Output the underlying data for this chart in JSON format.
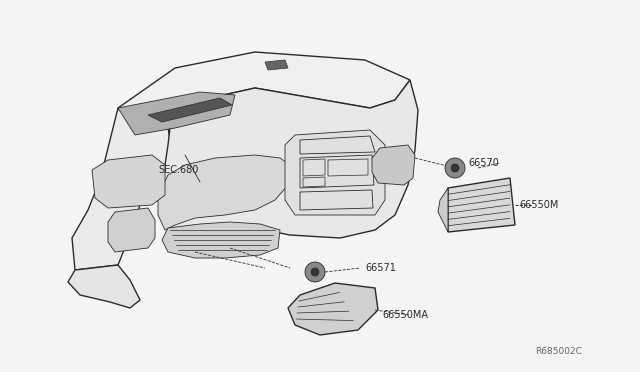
{
  "background_color": "#f5f5f5",
  "line_color": "#2a2a2a",
  "label_color": "#2a2a2a",
  "figsize": [
    6.4,
    3.72
  ],
  "dpi": 100,
  "labels": {
    "sec680": "SEC.680",
    "part66570": "66570",
    "part66550M": "66550M",
    "part66571": "66571",
    "part66550MA": "66550MA",
    "ref": "R685002C"
  },
  "fontsize_label": 7.0,
  "fontsize_ref": 6.5,
  "lw_main": 1.0,
  "lw_thin": 0.6,
  "lw_detail": 0.5
}
